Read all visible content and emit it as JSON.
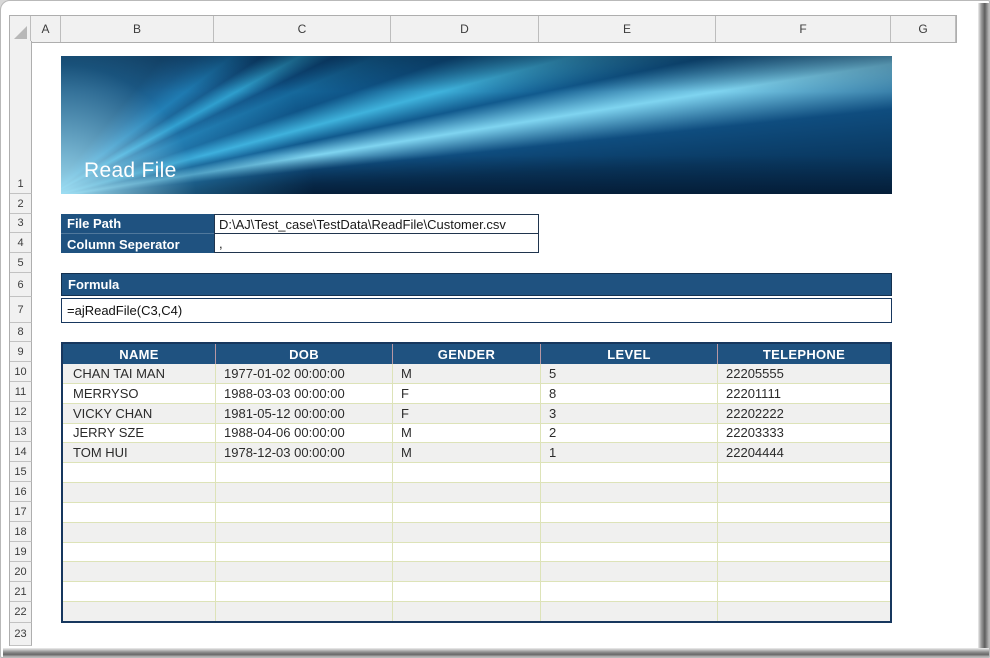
{
  "sheet": {
    "column_headers": [
      "A",
      "B",
      "C",
      "D",
      "E",
      "F",
      "G"
    ],
    "row_headers": [
      "1",
      "2",
      "3",
      "4",
      "5",
      "6",
      "7",
      "8",
      "9",
      "10",
      "11",
      "12",
      "13",
      "14",
      "15",
      "16",
      "17",
      "18",
      "19",
      "20",
      "21",
      "22",
      "23"
    ]
  },
  "banner": {
    "title": "Read File"
  },
  "params": {
    "file_path_label": "File Path",
    "file_path_value": "D:\\AJ\\Test_case\\TestData\\ReadFile\\Customer.csv",
    "separator_label": "Column Seperator",
    "separator_value": ","
  },
  "formula": {
    "header": "Formula",
    "value": "=ajReadFile(C3,C4)"
  },
  "table": {
    "columns": [
      "NAME",
      "DOB",
      "GENDER",
      "LEVEL",
      "TELEPHONE"
    ],
    "rows": [
      [
        "CHAN TAI MAN",
        "1977-01-02 00:00:00",
        "M",
        "5",
        "22205555"
      ],
      [
        "MERRYSO",
        "1988-03-03 00:00:00",
        "F",
        "8",
        "22201111"
      ],
      [
        "VICKY CHAN",
        "1981-05-12 00:00:00",
        "F",
        "3",
        "22202222"
      ],
      [
        "JERRY SZE",
        "1988-04-06 00:00:00",
        "M",
        "2",
        "22203333"
      ],
      [
        "TOM HUI",
        "1978-12-03 00:00:00",
        "M",
        "1",
        "22204444"
      ]
    ],
    "empty_row_count": 8
  },
  "colors": {
    "header_blue": "#1F5280",
    "table_border": "#17375E",
    "stripe_gray": "#F0F0EF",
    "gridline_olive": "#DDE3B8",
    "banner_base_blue": "#0A3F6E"
  }
}
